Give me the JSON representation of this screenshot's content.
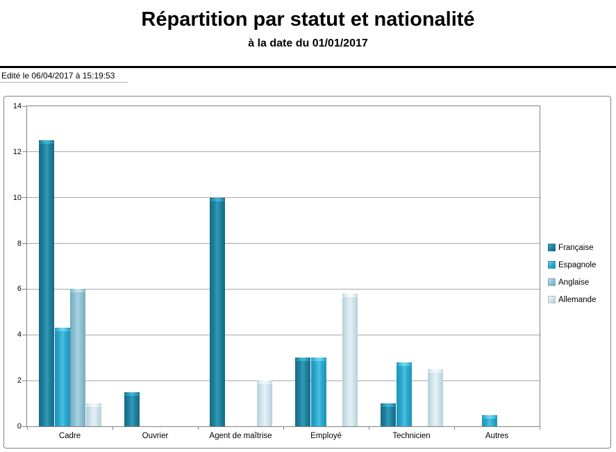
{
  "header": {
    "title": "Répartition par statut et nationalité",
    "subtitle": "à la date du 01/01/2017",
    "edited_label": "Edité le 06/04/2017 à 15:19:53"
  },
  "chart_data": {
    "type": "bar",
    "title": "Répartition par statut et nationalité",
    "subtitle": "à la date du 01/01/2017",
    "categories": [
      "Cadre",
      "Ouvrier",
      "Agent de maîtrise",
      "Employé",
      "Technicien",
      "Autres"
    ],
    "series": [
      {
        "name": "Française",
        "values": [
          12.5,
          1.5,
          10,
          3,
          1,
          null
        ],
        "color": "#1f7f9c",
        "gradient": {
          "edge": "#166a84",
          "mid": "#1f7f9c",
          "light": "#2f9cba",
          "cap": "#3cb4d4"
        }
      },
      {
        "name": "Espagnole",
        "values": [
          4.3,
          null,
          null,
          3,
          2.8,
          0.5
        ],
        "color": "#2aa6cb",
        "gradient": {
          "edge": "#1d93b8",
          "mid": "#2aa6cb",
          "light": "#49c0e0",
          "cap": "#6ad4ee"
        }
      },
      {
        "name": "Anglaise",
        "values": [
          6,
          null,
          null,
          null,
          null,
          null
        ],
        "color": "#8cc0d2",
        "gradient": {
          "edge": "#74a9bd",
          "mid": "#8cc0d2",
          "light": "#a6d2e0",
          "cap": "#c2e2ec"
        }
      },
      {
        "name": "Allemande",
        "values": [
          1,
          null,
          2,
          5.8,
          2.5,
          null
        ],
        "color": "#cfe2ea",
        "gradient": {
          "edge": "#b6cfda",
          "mid": "#cfe2ea",
          "light": "#e4f1f6",
          "cap": "#f2f9fb"
        }
      }
    ],
    "xlabel": "",
    "ylabel": "",
    "ylim": [
      0,
      14
    ],
    "ytick_step": 2,
    "yticks": [
      0,
      2,
      4,
      6,
      8,
      10,
      12,
      14
    ],
    "grid": true,
    "legend_position": "right",
    "legend_labels": [
      "Française",
      "Espagnole",
      "Anglaise",
      "Allemande"
    ]
  },
  "colors": {
    "grid": "#a6a6a6",
    "axis": "#808080",
    "chart_border": "#808080",
    "header_rule": "#000000",
    "background": "#ffffff"
  }
}
